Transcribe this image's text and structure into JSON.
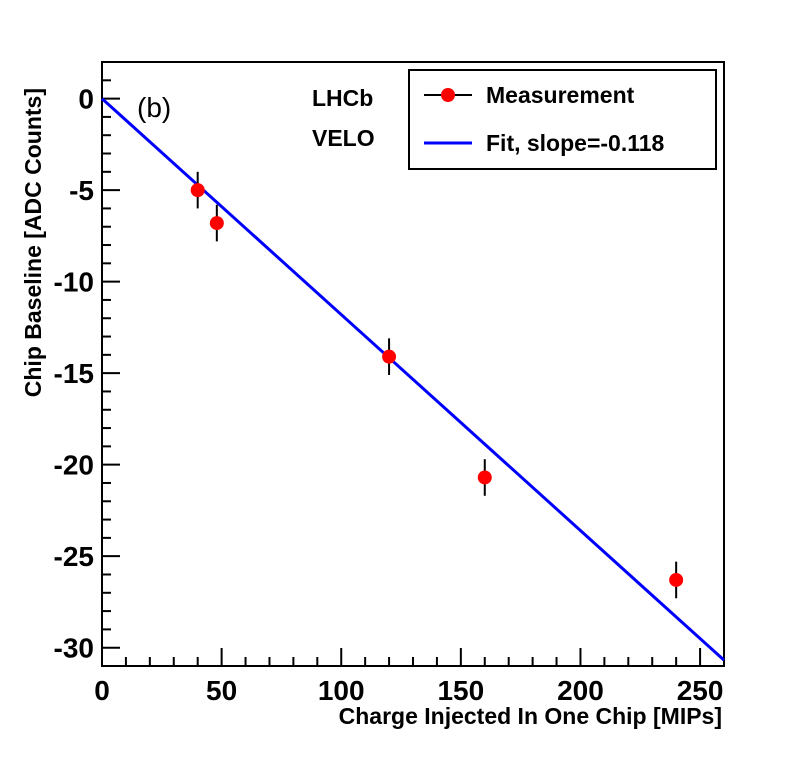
{
  "chart_data": {
    "type": "scatter",
    "title": "",
    "panel_label": "(b)",
    "annotations": [
      "LHCb",
      "VELO"
    ],
    "xlabel": "Charge Injected In One Chip [MIPs]",
    "ylabel": "Chip Baseline [ADC Counts]",
    "xlim": [
      0,
      260
    ],
    "ylim": [
      -31,
      2
    ],
    "x_ticks": [
      0,
      50,
      100,
      150,
      200,
      250
    ],
    "x_tick_labels": [
      "0",
      "50",
      "100",
      "150",
      "200",
      "250"
    ],
    "y_ticks": [
      0,
      -5,
      -10,
      -15,
      -20,
      -25,
      -30
    ],
    "y_tick_labels": [
      "0",
      "-5",
      "-10",
      "-15",
      "-20",
      "-25",
      "-30"
    ],
    "series": [
      {
        "name": "Measurement",
        "color": "#ff0000",
        "x": [
          40,
          48,
          120,
          160,
          240
        ],
        "y": [
          -5.0,
          -6.8,
          -14.1,
          -20.7,
          -26.3
        ],
        "y_err": [
          1.0,
          1.0,
          1.0,
          1.0,
          1.0
        ]
      },
      {
        "name": "Fit, slope=-0.118",
        "color": "#0000ff",
        "kind": "line",
        "intercept": 0,
        "slope": -0.118
      }
    ],
    "legend": {
      "position": "top-right",
      "entries": [
        "Measurement",
        "Fit, slope=-0.118"
      ]
    },
    "grid": false
  }
}
